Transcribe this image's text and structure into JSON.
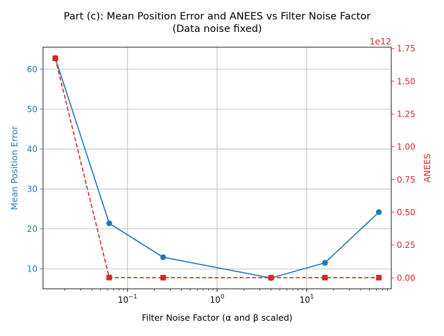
{
  "chart_data": {
    "type": "line",
    "title": "Part (c): Mean Position Error and ANEES vs Filter Noise Factor",
    "subtitle": "(Data noise fixed)",
    "xlabel": "Filter Noise Factor (α and β scaled)",
    "x_scale": "log",
    "x": [
      0.015625,
      0.0625,
      0.25,
      4,
      16,
      64
    ],
    "x_ticks": [
      {
        "value": 0.1,
        "label": "10",
        "exp": "−1"
      },
      {
        "value": 1,
        "label": "10",
        "exp": "0"
      },
      {
        "value": 10,
        "label": "10",
        "exp": "1"
      }
    ],
    "grid": true,
    "left_axis": {
      "label": "Mean Position Error",
      "color": "#1f77b4",
      "ylim": [
        5,
        65.5
      ],
      "ticks": [
        "10",
        "20",
        "30",
        "40",
        "50",
        "60"
      ]
    },
    "right_axis": {
      "label": "ANEES",
      "color": "#d62728",
      "ylim": [
        -0.084,
        1.76
      ],
      "offset_text": "1e12",
      "ticks": [
        "0.00",
        "0.25",
        "0.50",
        "0.75",
        "1.00",
        "1.25",
        "1.50",
        "1.75"
      ]
    },
    "series": [
      {
        "axis": "left",
        "color": "#1f77b4",
        "marker": "circle",
        "line": "solid",
        "values": [
          62.8,
          21.4,
          12.9,
          7.7,
          11.5,
          24.2
        ]
      },
      {
        "axis": "right",
        "color": "#d62728",
        "marker": "square",
        "line": "dashed",
        "values": [
          1.675,
          0.002,
          0.001,
          0.001,
          0.001,
          0.001
        ]
      }
    ]
  }
}
